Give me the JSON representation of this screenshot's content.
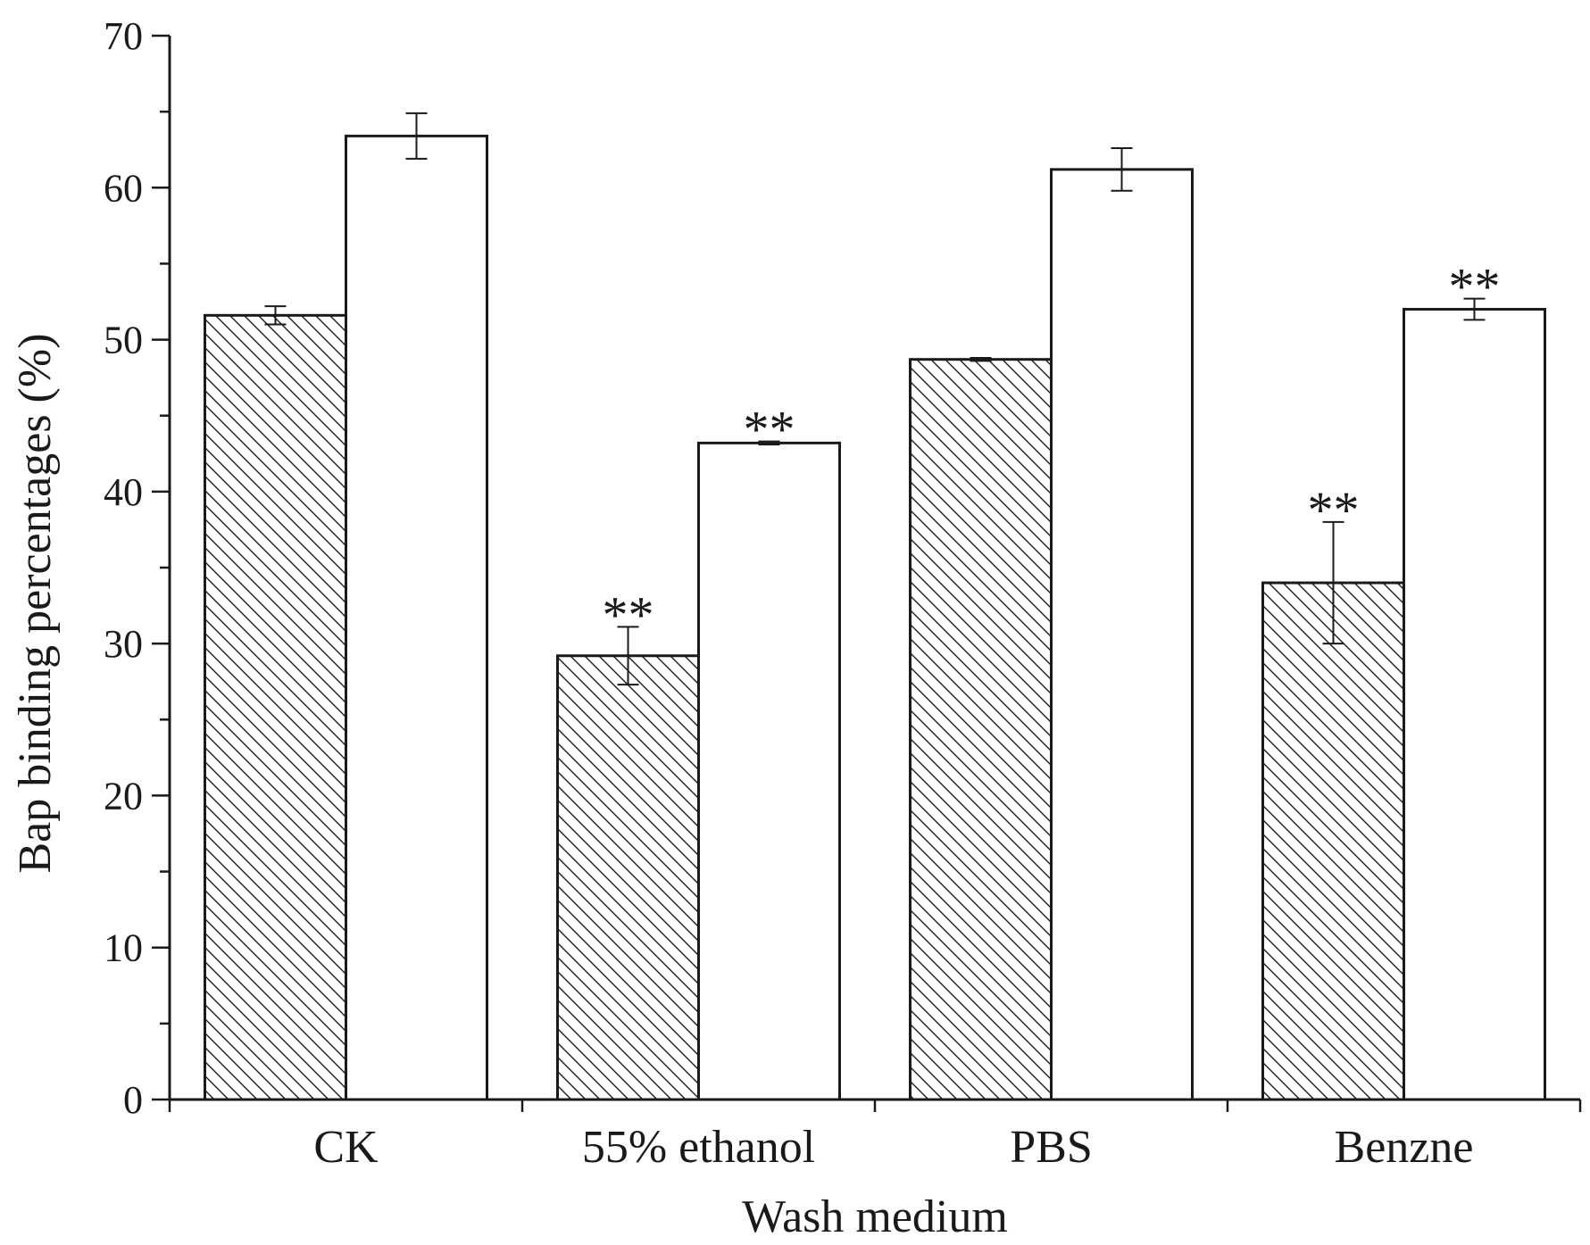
{
  "chart_data": {
    "type": "bar",
    "title": "",
    "xlabel": "Wash medium",
    "ylabel": "Bap binding percentages (%)",
    "ylim": [
      0,
      70
    ],
    "yticks": [
      0,
      10,
      20,
      30,
      40,
      50,
      60,
      70
    ],
    "grid": false,
    "categories": [
      "CK",
      "55% ethanol",
      "PBS",
      "Benzne"
    ],
    "series": [
      {
        "name": "hatched",
        "pattern": "hatched",
        "values": [
          51.6,
          29.2,
          48.7,
          34.0
        ],
        "errors": [
          0.6,
          1.9,
          0.1,
          4.0
        ],
        "annotations": [
          "",
          "**",
          "",
          "**"
        ]
      },
      {
        "name": "open",
        "pattern": "open",
        "values": [
          63.4,
          43.2,
          61.2,
          52.0
        ],
        "errors": [
          1.5,
          0.1,
          1.4,
          0.7
        ],
        "annotations": [
          "",
          "**",
          "",
          "**"
        ]
      }
    ]
  }
}
